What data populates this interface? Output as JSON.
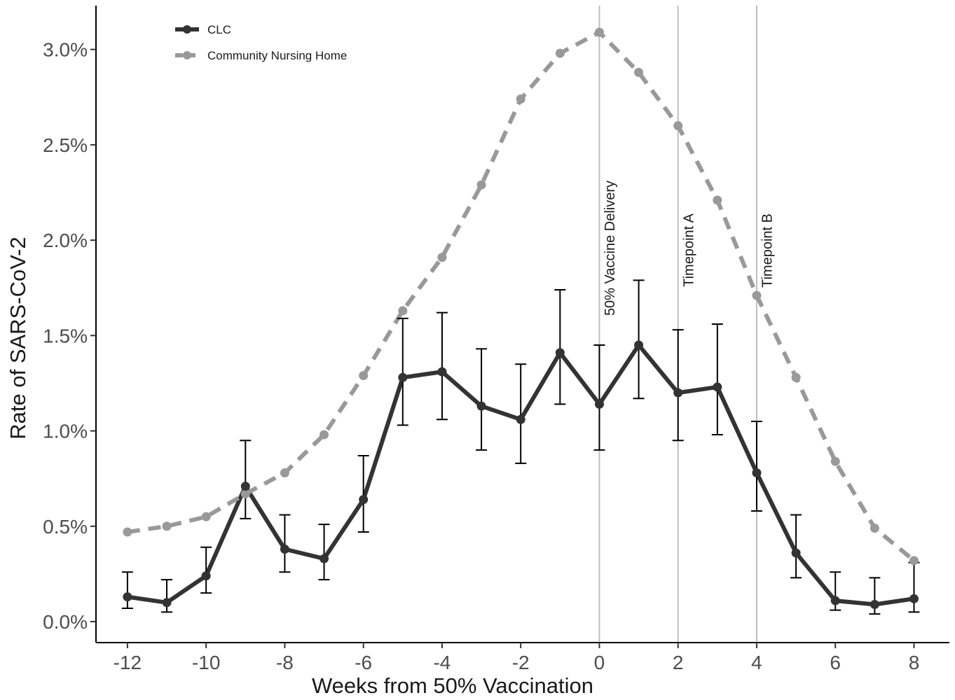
{
  "chart_data": {
    "type": "line",
    "title": "",
    "xlabel": "Weeks from 50% Vaccination",
    "ylabel": "Rate of SARS-CoV-2",
    "xlim": [
      -12.8,
      8.9
    ],
    "ylim": [
      -0.11,
      3.23
    ],
    "x_ticks": [
      -12,
      -10,
      -8,
      -6,
      -4,
      -2,
      0,
      2,
      4,
      6,
      8
    ],
    "x_tick_labels": [
      "-12",
      "-10",
      "-8",
      "-6",
      "-4",
      "-2",
      "0",
      "2",
      "4",
      "6",
      "8"
    ],
    "y_ticks": [
      0.0,
      0.5,
      1.0,
      1.5,
      2.0,
      2.5,
      3.0
    ],
    "y_tick_labels": [
      "0.0%",
      "0.5%",
      "1.0%",
      "1.5%",
      "2.0%",
      "2.5%",
      "3.0%"
    ],
    "grid": false,
    "legend_position": "top-left",
    "series": [
      {
        "name": "CLC",
        "color": "#333333",
        "line_style": "solid",
        "x": [
          -12,
          -11,
          -10,
          -9,
          -8,
          -7,
          -6,
          -5,
          -4,
          -3,
          -2,
          -1,
          0,
          1,
          2,
          3,
          4,
          5,
          6,
          7,
          8
        ],
        "y": [
          0.13,
          0.1,
          0.24,
          0.71,
          0.38,
          0.33,
          0.64,
          1.28,
          1.31,
          1.13,
          1.06,
          1.41,
          1.14,
          1.45,
          1.2,
          1.23,
          0.78,
          0.36,
          0.11,
          0.09,
          0.12
        ],
        "error_low": [
          0.07,
          0.05,
          0.15,
          0.54,
          0.26,
          0.22,
          0.47,
          1.03,
          1.06,
          0.9,
          0.83,
          1.14,
          0.9,
          1.17,
          0.95,
          0.98,
          0.58,
          0.23,
          0.06,
          0.04,
          0.05
        ],
        "error_high": [
          0.26,
          0.22,
          0.39,
          0.95,
          0.56,
          0.51,
          0.87,
          1.59,
          1.62,
          1.43,
          1.35,
          1.74,
          1.45,
          1.79,
          1.53,
          1.56,
          1.05,
          0.56,
          0.26,
          0.23,
          0.31
        ]
      },
      {
        "name": "Community Nursing Home",
        "color": "#999999",
        "line_style": "dashed",
        "x": [
          -12,
          -11,
          -10,
          -9,
          -8,
          -7,
          -6,
          -5,
          -4,
          -3,
          -2,
          -1,
          0,
          1,
          2,
          3,
          4,
          5,
          6,
          7,
          8
        ],
        "y": [
          0.47,
          0.5,
          0.55,
          0.67,
          0.78,
          0.98,
          1.29,
          1.63,
          1.91,
          2.29,
          2.74,
          2.98,
          3.09,
          2.88,
          2.6,
          2.21,
          1.71,
          1.28,
          0.84,
          0.49,
          0.32
        ]
      }
    ],
    "vertical_lines": [
      {
        "x": 0,
        "label": "50% Vaccine Delivery"
      },
      {
        "x": 2,
        "label": "Timepoint  A"
      },
      {
        "x": 4,
        "label": "Timepoint  B"
      }
    ]
  }
}
